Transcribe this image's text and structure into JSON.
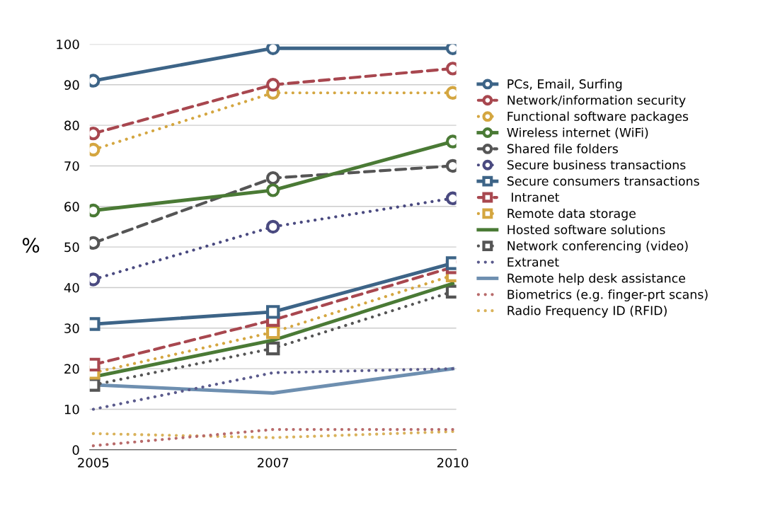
{
  "chart_data": {
    "type": "line",
    "ylabel": "%",
    "categories": [
      "2005",
      "2007",
      "2010"
    ],
    "ylim": [
      0,
      100
    ],
    "yticks": [
      0,
      10,
      20,
      30,
      40,
      50,
      60,
      70,
      80,
      90,
      100
    ],
    "grid": "y",
    "legend": "right",
    "series": [
      {
        "name": "PCs, Email, Surfing",
        "color": "#3d6487",
        "values": [
          91,
          99,
          99
        ],
        "marker": "circle",
        "line_style": "solid"
      },
      {
        "name": "Network/information security",
        "color": "#a8474f",
        "values": [
          78,
          90,
          94
        ],
        "marker": "circle",
        "line_style": "dashed"
      },
      {
        "name": "Functional software packages",
        "color": "#d4a640",
        "values": [
          74,
          88,
          88
        ],
        "marker": "circle",
        "line_style": "dotted"
      },
      {
        "name": "Wireless internet (WiFi)",
        "color": "#4a7a35",
        "values": [
          59,
          64,
          76
        ],
        "marker": "circle",
        "line_style": "solid"
      },
      {
        "name": "Shared file folders",
        "color": "#555555",
        "values": [
          51,
          67,
          70
        ],
        "marker": "circle",
        "line_style": "dashed"
      },
      {
        "name": "Secure business transactions",
        "color": "#4a4a80",
        "values": [
          42,
          55,
          62
        ],
        "marker": "circle",
        "line_style": "dotted"
      },
      {
        "name": "Secure consumers transactions",
        "color": "#3d6487",
        "values": [
          31,
          34,
          46
        ],
        "marker": "square",
        "line_style": "solid"
      },
      {
        "name": " Intranet",
        "color": "#a8474f",
        "values": [
          21,
          32,
          45
        ],
        "marker": "square",
        "line_style": "dashed"
      },
      {
        "name": "Remote data storage",
        "color": "#d4a640",
        "values": [
          19,
          29,
          43
        ],
        "marker": "square",
        "line_style": "dotted"
      },
      {
        "name": "Hosted software solutions",
        "color": "#4a7a35",
        "values": [
          18,
          27,
          41
        ],
        "marker": "none",
        "line_style": "solid"
      },
      {
        "name": "Network conferencing (video)",
        "color": "#555555",
        "values": [
          16,
          25,
          39
        ],
        "marker": "square",
        "line_style": "dotted"
      },
      {
        "name": "Extranet",
        "color": "#5a5a8c",
        "values": [
          10,
          19,
          20
        ],
        "marker": "none",
        "line_style": "dotted"
      },
      {
        "name": "Remote help desk assistance",
        "color": "#6e8fb0",
        "values": [
          16,
          14,
          20
        ],
        "marker": "none",
        "line_style": "solid"
      },
      {
        "name": "Biometrics (e.g. finger-prt scans)",
        "color": "#b86a6a",
        "values": [
          1,
          5,
          5
        ],
        "marker": "none",
        "line_style": "dotted"
      },
      {
        "name": "Radio Frequency ID (RFID)",
        "color": "#d9b25a",
        "values": [
          4,
          3,
          4.5
        ],
        "marker": "none",
        "line_style": "dotted"
      }
    ]
  }
}
